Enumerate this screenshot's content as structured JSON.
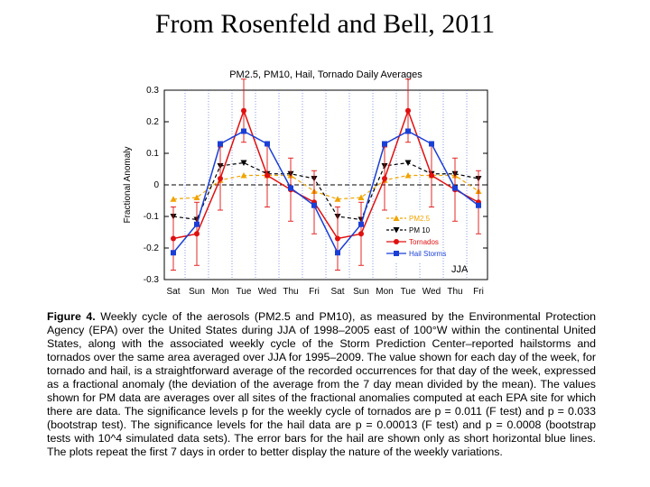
{
  "slide": {
    "title": "From Rosenfeld and Bell, 2011"
  },
  "chart_data": {
    "type": "line",
    "title": "PM2.5, PM10, Hail, Tornado Daily Averages",
    "ylabel": "Fractional Anomaly",
    "xlabel": "",
    "ylim": [
      -0.3,
      0.3
    ],
    "yticks": [
      "0.3",
      "0.2",
      "0.1",
      "0",
      "-0.1",
      "-0.2",
      "-0.3"
    ],
    "yticks_values": [
      0.3,
      0.2,
      0.1,
      0,
      -0.1,
      -0.2,
      -0.3
    ],
    "categories": [
      "Sat",
      "Sun",
      "Mon",
      "Tue",
      "Wed",
      "Thu",
      "Fri",
      "Sat",
      "Sun",
      "Mon",
      "Tue",
      "Wed",
      "Thu",
      "Fri"
    ],
    "annotation": "JJA",
    "legend_position": "bottom-right",
    "zero_line": true,
    "series": [
      {
        "name": "PM2.5",
        "color": "#f0a400",
        "style": "dashed",
        "marker": "triangle-up",
        "values": [
          -0.045,
          -0.04,
          0.015,
          0.03,
          0.03,
          0.03,
          -0.02,
          -0.045,
          -0.04,
          0.015,
          0.03,
          0.03,
          0.03,
          -0.02
        ]
      },
      {
        "name": "PM 10",
        "color": "#000000",
        "style": "dashed",
        "marker": "triangle-down",
        "values": [
          -0.1,
          -0.11,
          0.06,
          0.07,
          0.035,
          0.035,
          0.02,
          -0.1,
          -0.11,
          0.06,
          0.07,
          0.035,
          0.035,
          0.02
        ]
      },
      {
        "name": "Tornados",
        "color": "#e01010",
        "style": "solid",
        "marker": "circle",
        "values": [
          -0.17,
          -0.155,
          0.02,
          0.235,
          0.03,
          -0.015,
          -0.055,
          -0.17,
          -0.155,
          0.02,
          0.235,
          0.03,
          -0.015,
          -0.055
        ],
        "error": [
          0.1,
          0.1,
          0.1,
          0.1,
          0.1,
          0.1,
          0.1,
          0.1,
          0.1,
          0.1,
          0.1,
          0.1,
          0.1,
          0.1
        ]
      },
      {
        "name": "Hail Storms",
        "color": "#1a3fd6",
        "style": "solid",
        "marker": "square",
        "values": [
          -0.215,
          -0.125,
          0.13,
          0.17,
          0.13,
          -0.01,
          -0.065,
          -0.215,
          -0.125,
          0.13,
          0.17,
          0.13,
          -0.01,
          -0.065
        ]
      }
    ]
  },
  "caption": {
    "fig_label": "Figure 4.",
    "text": "Weekly cycle of the aerosols (PM2.5 and PM10), as measured by the Environmental Protection Agency (EPA) over the United States during JJA of 1998–2005 east of 100°W within the continental United States, along with the associated weekly cycle of the Storm Prediction Center–reported hailstorms and tornados over the same area averaged over JJA for 1995–2009. The value shown for each day of the week, for tornado and hail, is a straightforward average of the recorded occurrences for that day of the week, expressed as a fractional anomaly (the deviation of the average from the 7 day mean divided by the mean). The values shown for PM data are averages over all sites of the fractional anomalies computed at each EPA site for which there are data. The significance levels p for the weekly cycle of tornados are p = 0.011 (F test) and p = 0.033 (bootstrap test). The significance levels for the hail data are p = 0.00013 (F test) and p = 0.0008 (bootstrap tests with 10^4 simulated data sets). The error bars for the hail are shown only as short horizontal blue lines. The plots repeat the first 7 days in order to better display the nature of the weekly variations."
  }
}
